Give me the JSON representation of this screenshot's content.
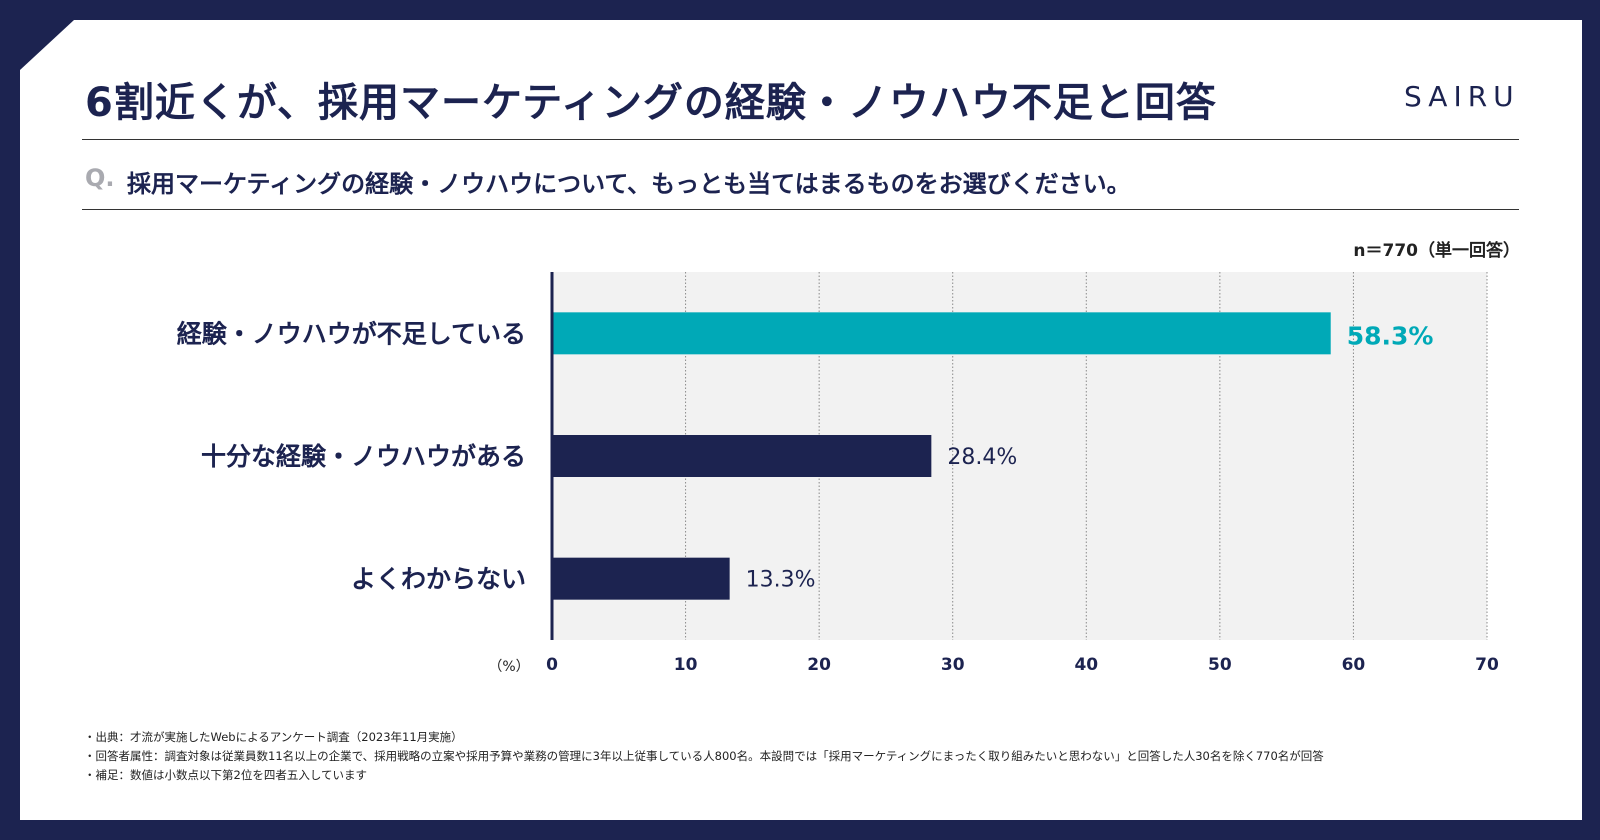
{
  "header": {
    "title": "6割近くが、採用マーケティングの経験・ノウハウ不足と回答",
    "brand": "SAIRU",
    "question_mark": "Q.",
    "question": "採用マーケティングの経験・ノウハウについて、もっとも当てはまるものをお選びください。",
    "sample": "n＝770（単一回答）"
  },
  "chart_data": {
    "type": "bar",
    "orientation": "horizontal",
    "categories": [
      "経験・ノウハウが不足している",
      "十分な経験・ノウハウがある",
      "よくわからない"
    ],
    "values": [
      58.3,
      28.4,
      13.3
    ],
    "value_labels": [
      "58.3%",
      "28.4%",
      "13.3%"
    ],
    "xlim": [
      0,
      70
    ],
    "xticks": [
      0,
      10,
      20,
      30,
      40,
      50,
      60,
      70
    ],
    "xlabel": "（%）",
    "grid": true,
    "colors": [
      "#00a9b7",
      "#1c2350",
      "#1c2350"
    ],
    "label_colors": [
      "#00a9b7",
      "#1c2350",
      "#1c2350"
    ],
    "plot_background": "#f2f2f2"
  },
  "notes": [
    "・出典：才流が実施したWebによるアンケート調査（2023年11月実施）",
    "・回答者属性：調査対象は従業員数11名以上の企業で、採用戦略の立案や採用予算や業務の管理に3年以上従事している人800名。本設問では「採用マーケティングにまったく取り組みたいと思わない」と回答した人30名を除く770名が回答",
    "・補足：数値は小数点以下第2位を四者五入しています"
  ]
}
